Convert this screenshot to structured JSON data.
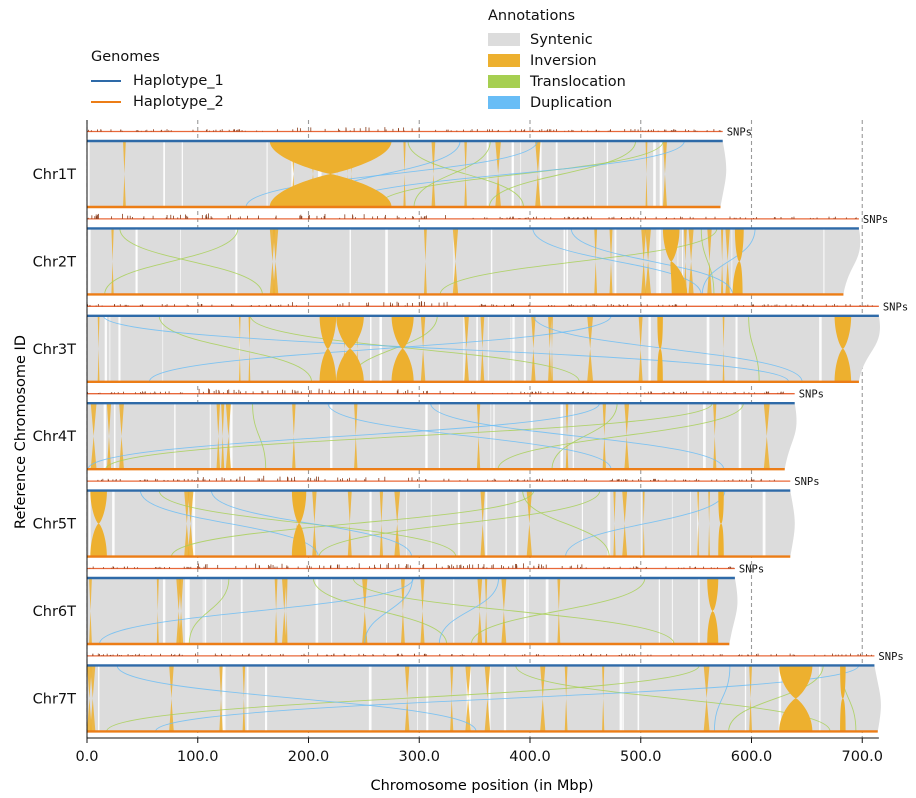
{
  "legend": {
    "genomes_title": "Genomes",
    "genomes": [
      {
        "label": "Haplotype_1",
        "color": "#2e6aa8"
      },
      {
        "label": "Haplotype_2",
        "color": "#ec7d16"
      }
    ],
    "annotations_title": "Annotations",
    "annotations": [
      {
        "label": "Syntenic",
        "color": "#dcdcdc"
      },
      {
        "label": "Inversion",
        "color": "#edb02f"
      },
      {
        "label": "Translocation",
        "color": "#a6cf51"
      },
      {
        "label": "Duplication",
        "color": "#68bdf6"
      }
    ]
  },
  "chart_data": {
    "type": "synteny",
    "xlabel": "Chromosome position (in Mbp)",
    "ylabel": "Reference Chromosome ID",
    "xlim": [
      0,
      715
    ],
    "xticks": [
      "0.0",
      "100.0",
      "200.0",
      "300.0",
      "400.0",
      "500.0",
      "600.0",
      "700.0"
    ],
    "xtick_values": [
      0,
      100,
      200,
      300,
      400,
      500,
      600,
      700
    ],
    "snp_label": "SNPs",
    "colors": {
      "hap1": "#2e6aa8",
      "hap2": "#ec7d16",
      "snp": "#8a3d1c",
      "syntenic": "#dcdcdc",
      "inversion": "#edb02f",
      "translocation": "#a6cf51",
      "duplication": "#68bdf6"
    },
    "chromosomes": [
      {
        "name": "Chr1T",
        "hap1_len": 574,
        "hap2_len": 572,
        "snp_len": 574,
        "inversions": [
          [
            165,
            275,
            165,
            275
          ]
        ],
        "snp_dense": [
          [
            165,
            300
          ]
        ]
      },
      {
        "name": "Chr2T",
        "hap1_len": 697,
        "hap2_len": 683,
        "snp_len": 697,
        "inversions": [
          [
            520,
            535,
            528,
            542
          ],
          [
            585,
            593,
            583,
            592
          ]
        ],
        "snp_dense": [
          [
            0,
            330
          ]
        ]
      },
      {
        "name": "Chr3T",
        "hap1_len": 715,
        "hap2_len": 697,
        "snp_len": 715,
        "inversions": [
          [
            210,
            225,
            210,
            225
          ],
          [
            225,
            250,
            225,
            250
          ],
          [
            275,
            295,
            275,
            295
          ],
          [
            515,
            520,
            515,
            520
          ],
          [
            675,
            690,
            675,
            690
          ]
        ],
        "snp_dense": [
          [
            180,
            330
          ]
        ]
      },
      {
        "name": "Chr4T",
        "hap1_len": 639,
        "hap2_len": 630,
        "snp_len": 639,
        "inversions": [],
        "snp_dense": [
          [
            100,
            320
          ]
        ]
      },
      {
        "name": "Chr5T",
        "hap1_len": 635,
        "hap2_len": 635,
        "snp_len": 635,
        "inversions": [
          [
            3,
            18,
            3,
            18
          ],
          [
            185,
            198,
            185,
            198
          ],
          [
            570,
            575,
            570,
            575
          ]
        ],
        "snp_dense": [
          [
            100,
            300
          ]
        ]
      },
      {
        "name": "Chr6T",
        "hap1_len": 585,
        "hap2_len": 580,
        "snp_len": 585,
        "inversions": [
          [
            560,
            570,
            560,
            570
          ]
        ],
        "snp_dense": [
          [
            100,
            450
          ]
        ]
      },
      {
        "name": "Chr7T",
        "hap1_len": 711,
        "hap2_len": 714,
        "snp_len": 711,
        "inversions": [
          [
            625,
            655,
            625,
            655
          ],
          [
            680,
            685,
            680,
            685
          ]
        ],
        "snp_dense": [
          [
            0,
            0
          ]
        ]
      }
    ]
  }
}
